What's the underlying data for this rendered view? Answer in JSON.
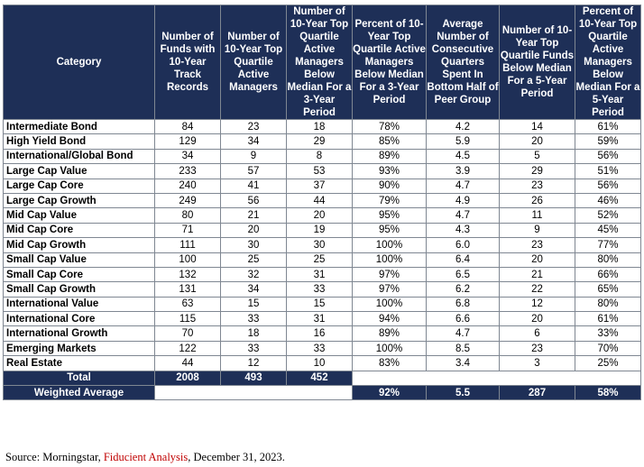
{
  "headers": [
    "Category",
    "Number of Funds with 10-Year Track Records",
    "Number of 10-Year Top Quartile Active Managers",
    "Number of 10-Year Top Quartile Active Managers Below Median For a 3-Year Period",
    "Percent of 10-Year Top Quartile Active Managers Below Median For a 3-Year Period",
    "Average Number of Consecutive Quarters Spent In Bottom Half of Peer Group",
    "Number of 10-Year Top Quartile Funds Below Median For a 5-Year Period",
    "Percent of 10-Year Top Quartile Active Managers Below Median For a 5-Year Period"
  ],
  "rows": [
    [
      "Intermediate Bond",
      "84",
      "23",
      "18",
      "78%",
      "4.2",
      "14",
      "61%"
    ],
    [
      "High Yield Bond",
      "129",
      "34",
      "29",
      "85%",
      "5.9",
      "20",
      "59%"
    ],
    [
      "International/Global Bond",
      "34",
      "9",
      "8",
      "89%",
      "4.5",
      "5",
      "56%"
    ],
    [
      "Large Cap Value",
      "233",
      "57",
      "53",
      "93%",
      "3.9",
      "29",
      "51%"
    ],
    [
      "Large Cap Core",
      "240",
      "41",
      "37",
      "90%",
      "4.7",
      "23",
      "56%"
    ],
    [
      "Large Cap Growth",
      "249",
      "56",
      "44",
      "79%",
      "4.9",
      "26",
      "46%"
    ],
    [
      "Mid Cap Value",
      "80",
      "21",
      "20",
      "95%",
      "4.7",
      "11",
      "52%"
    ],
    [
      "Mid Cap Core",
      "71",
      "20",
      "19",
      "95%",
      "4.3",
      "9",
      "45%"
    ],
    [
      "Mid Cap Growth",
      "111",
      "30",
      "30",
      "100%",
      "6.0",
      "23",
      "77%"
    ],
    [
      "Small Cap Value",
      "100",
      "25",
      "25",
      "100%",
      "6.4",
      "20",
      "80%"
    ],
    [
      "Small Cap Core",
      "132",
      "32",
      "31",
      "97%",
      "6.5",
      "21",
      "66%"
    ],
    [
      "Small Cap Growth",
      "131",
      "34",
      "33",
      "97%",
      "6.2",
      "22",
      "65%"
    ],
    [
      "International Value",
      "63",
      "15",
      "15",
      "100%",
      "6.8",
      "12",
      "80%"
    ],
    [
      "International Core",
      "115",
      "33",
      "31",
      "94%",
      "6.6",
      "20",
      "61%"
    ],
    [
      "International Growth",
      "70",
      "18",
      "16",
      "89%",
      "4.7",
      "6",
      "33%"
    ],
    [
      "Emerging Markets",
      "122",
      "33",
      "33",
      "100%",
      "8.5",
      "23",
      "70%"
    ],
    [
      "Real Estate",
      "44",
      "12",
      "10",
      "83%",
      "3.4",
      "3",
      "25%"
    ]
  ],
  "total": {
    "label": "Total",
    "funds": "2008",
    "top_quartile": "493",
    "below_median_3yr": "452"
  },
  "weighted_average": {
    "label": "Weighted Average",
    "pct_3yr": "92%",
    "avg_quarters": "5.5",
    "below_median_5yr": "287",
    "pct_5yr": "58%"
  },
  "source": {
    "prefix": "Source: Morningstar, ",
    "highlight": "Fiducient Analysis",
    "suffix": ", December 31, 2023."
  },
  "colors": {
    "header_bg": "#1e2f57",
    "header_text": "#ffffff",
    "source_highlight": "#c00000"
  }
}
